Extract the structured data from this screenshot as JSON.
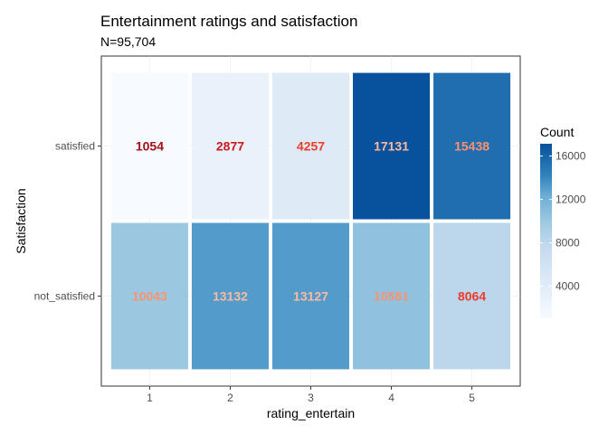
{
  "chart_data": {
    "type": "heatmap",
    "title": "Entertainment ratings and satisfaction",
    "subtitle": "N=95,704",
    "xlabel": "rating_entertain",
    "ylabel": "Satisfaction",
    "x_categories": [
      "1",
      "2",
      "3",
      "4",
      "5"
    ],
    "y_categories": [
      "satisfied",
      "not_satisfied"
    ],
    "values": [
      [
        1054,
        2877,
        4257,
        17131,
        15438
      ],
      [
        10043,
        13132,
        13127,
        10581,
        8064
      ]
    ],
    "label_colors": [
      [
        "#a50f15",
        "#cb181d",
        "#ef3b2c",
        "#fcbba1",
        "#fc9272"
      ],
      [
        "#fc9272",
        "#fcbba1",
        "#fcbba1",
        "#fc9272",
        "#ef3b2c"
      ]
    ],
    "legend": {
      "title": "Count",
      "ticks": [
        4000,
        8000,
        12000,
        16000
      ],
      "range": [
        1054,
        17131
      ],
      "color_low": "#f7fbff",
      "color_high": "#08519c",
      "placement": "right"
    },
    "grid": true
  }
}
